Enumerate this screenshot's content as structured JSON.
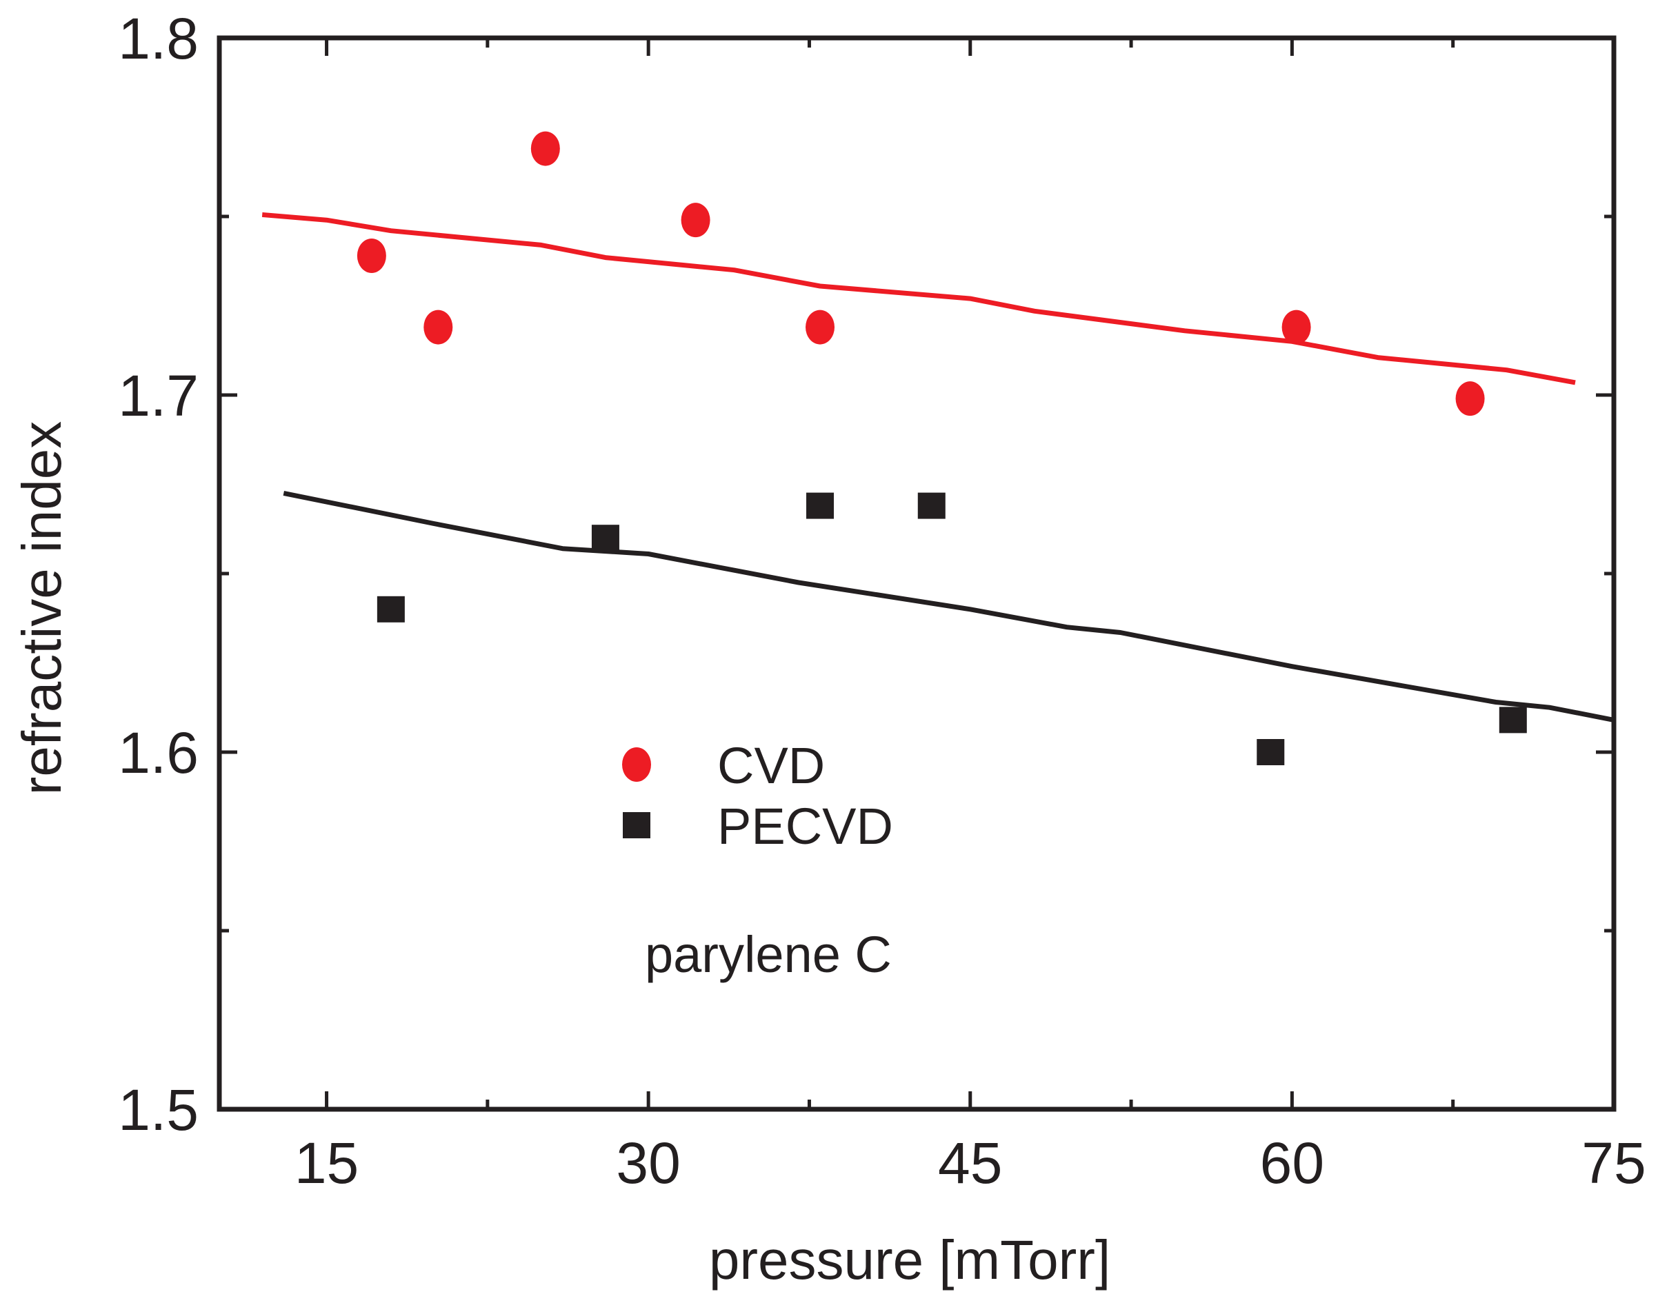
{
  "chart_data": {
    "type": "scatter",
    "title": "",
    "annotation": "parylene C",
    "xlabel": "pressure [mTorr]",
    "ylabel": "refractive index",
    "xlim": [
      10,
      75
    ],
    "ylim": [
      1.5,
      1.8
    ],
    "xticks": [
      15,
      30,
      45,
      60,
      75
    ],
    "xtick_labels": [
      "15",
      "30",
      "45",
      "60",
      "75"
    ],
    "xminor_ticks": [
      22.5,
      37.5,
      52.5,
      67.5
    ],
    "yticks": [
      1.5,
      1.6,
      1.7,
      1.8
    ],
    "ytick_labels": [
      "1.5",
      "1.6",
      "1.7",
      "1.8"
    ],
    "yminor_ticks": [
      1.55,
      1.65,
      1.75
    ],
    "grid": false,
    "legend_position": "center-left",
    "series": [
      {
        "name": "CVD",
        "marker": "circle",
        "color": "#ed1c24",
        "points": [
          {
            "x": 17.1,
            "y": 1.739
          },
          {
            "x": 20.2,
            "y": 1.719
          },
          {
            "x": 25.2,
            "y": 1.769
          },
          {
            "x": 32.2,
            "y": 1.749
          },
          {
            "x": 38.0,
            "y": 1.719
          },
          {
            "x": 60.2,
            "y": 1.719
          },
          {
            "x": 68.3,
            "y": 1.699
          }
        ],
        "trend": [
          {
            "x": 12.0,
            "y": 1.7505
          },
          {
            "x": 15.0,
            "y": 1.749
          },
          {
            "x": 18.0,
            "y": 1.746
          },
          {
            "x": 25.0,
            "y": 1.742
          },
          {
            "x": 28.0,
            "y": 1.7385
          },
          {
            "x": 34.0,
            "y": 1.735
          },
          {
            "x": 38.0,
            "y": 1.7305
          },
          {
            "x": 45.0,
            "y": 1.727
          },
          {
            "x": 48.0,
            "y": 1.7235
          },
          {
            "x": 55.0,
            "y": 1.718
          },
          {
            "x": 60.0,
            "y": 1.715
          },
          {
            "x": 64.0,
            "y": 1.7105
          },
          {
            "x": 70.0,
            "y": 1.707
          },
          {
            "x": 73.2,
            "y": 1.7035
          }
        ]
      },
      {
        "name": "PECVD",
        "marker": "square",
        "color": "#231f20",
        "points": [
          {
            "x": 18.0,
            "y": 1.64
          },
          {
            "x": 28.0,
            "y": 1.66
          },
          {
            "x": 38.0,
            "y": 1.669
          },
          {
            "x": 43.2,
            "y": 1.669
          },
          {
            "x": 59.0,
            "y": 1.6
          },
          {
            "x": 70.3,
            "y": 1.609
          }
        ],
        "trend": [
          {
            "x": 13.0,
            "y": 1.6725
          },
          {
            "x": 20.0,
            "y": 1.664
          },
          {
            "x": 26.0,
            "y": 1.657
          },
          {
            "x": 30.0,
            "y": 1.6555
          },
          {
            "x": 37.0,
            "y": 1.6475
          },
          {
            "x": 45.0,
            "y": 1.64
          },
          {
            "x": 49.5,
            "y": 1.635
          },
          {
            "x": 52.0,
            "y": 1.6335
          },
          {
            "x": 60.0,
            "y": 1.624
          },
          {
            "x": 69.5,
            "y": 1.614
          },
          {
            "x": 72.0,
            "y": 1.6125
          },
          {
            "x": 75.0,
            "y": 1.609
          }
        ]
      }
    ]
  }
}
